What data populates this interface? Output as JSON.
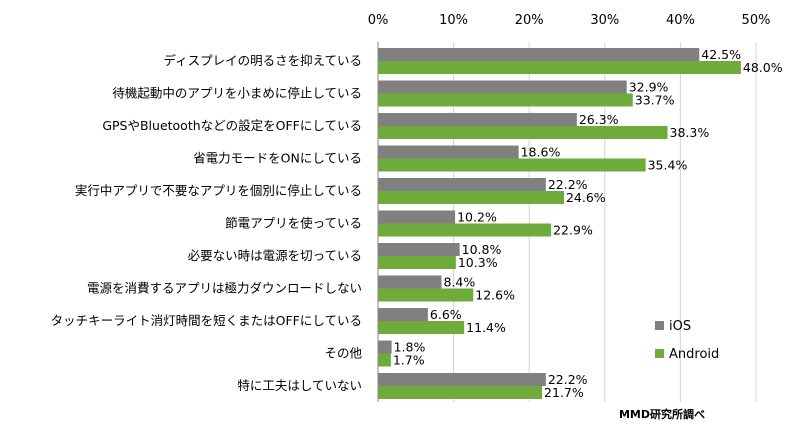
{
  "chart_data": {
    "type": "bar",
    "orientation": "horizontal",
    "categories": [
      "ディスプレイの明るさを抑えている",
      "待機起動中のアプリを小まめに停止している",
      "GPSやBluetoothなどの設定をOFFにしている",
      "省電力モードをONにしている",
      "実行中アプリで不要なアプリを個別に停止している",
      "節電アプリを使っている",
      "必要ない時は電源を切っている",
      "電源を消費するアプリは極力ダウンロードしない",
      "タッチキーライト消灯時間を短くまたはOFFにしている",
      "その他",
      "特に工夫はしていない"
    ],
    "series": [
      {
        "name": "iOS",
        "color": "#808080",
        "values": [
          42.5,
          32.9,
          26.3,
          18.6,
          22.2,
          10.2,
          10.8,
          8.4,
          6.6,
          1.8,
          22.2
        ],
        "labels": [
          "42.5%",
          "32.9%",
          "26.3%",
          "18.6%",
          "22.2%",
          "10.2%",
          "10.8%",
          "8.4%",
          "6.6%",
          "1.8%",
          "22.2%"
        ]
      },
      {
        "name": "Android",
        "color": "#6fab3b",
        "values": [
          48.0,
          33.7,
          38.3,
          35.4,
          24.6,
          22.9,
          10.3,
          12.6,
          11.4,
          1.7,
          21.7
        ],
        "labels": [
          "48.0%",
          "33.7%",
          "38.3%",
          "35.4%",
          "24.6%",
          "22.9%",
          "10.3%",
          "12.6%",
          "11.4%",
          "1.7%",
          "21.7%"
        ]
      }
    ],
    "xlim": [
      0,
      50
    ],
    "x_ticks": [
      0,
      10,
      20,
      30,
      40,
      50
    ],
    "x_tick_labels": [
      "0%",
      "10%",
      "20%",
      "30%",
      "40%",
      "50%"
    ],
    "x_axis_position": "top",
    "grid": true,
    "legend_position": "bottom-right",
    "source_note": "MMD研究所調べ"
  }
}
